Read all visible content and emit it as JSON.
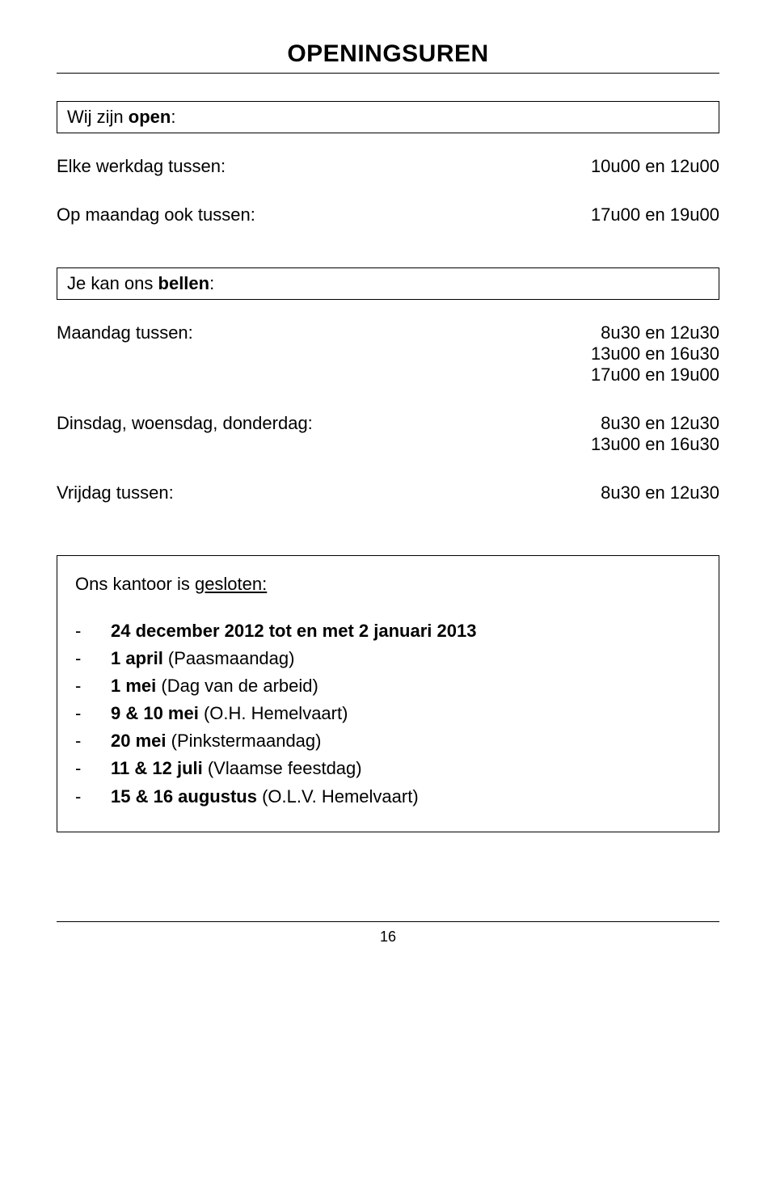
{
  "title": "OPENINGSUREN",
  "open_box_label_prefix": "Wij zijn ",
  "open_box_label_bold": "open",
  "open_box_label_suffix": ":",
  "rows1": [
    {
      "label": "Elke werkdag tussen:",
      "value": "10u00 en 12u00"
    },
    {
      "label": "Op maandag ook tussen:",
      "value": "17u00 en 19u00"
    }
  ],
  "call_box_prefix": "Je kan ons ",
  "call_box_bold": "bellen",
  "call_box_suffix": ":",
  "rows2": [
    {
      "label": "Maandag tussen:",
      "value": "8u30 en 12u30\n13u00 en 16u30\n17u00 en 19u00"
    },
    {
      "label": "Dinsdag, woensdag, donderdag:",
      "value": "8u30 en 12u30\n13u00 en 16u30"
    },
    {
      "label": "Vrijdag tussen:",
      "value": "8u30 en 12u30"
    }
  ],
  "closed_title_prefix": "Ons kantoor is ",
  "closed_title_underlined": "gesloten:",
  "closed_items": [
    {
      "bold": "24 december 2012 tot en met 2 januari 2013",
      "extra": ""
    },
    {
      "bold": "1 april",
      "extra": "  (Paasmaandag)"
    },
    {
      "bold": "1 mei",
      "extra": "  (Dag van de arbeid)"
    },
    {
      "bold": "9 & 10 mei",
      "extra": "  (O.H. Hemelvaart)"
    },
    {
      "bold": "20 mei",
      "extra": "  (Pinkstermaandag)"
    },
    {
      "bold": "11 & 12 juli",
      "extra": "  (Vlaamse feestdag)"
    },
    {
      "bold": "15 & 16 augustus",
      "extra": "  (O.L.V. Hemelvaart)"
    }
  ],
  "page_number": "16"
}
